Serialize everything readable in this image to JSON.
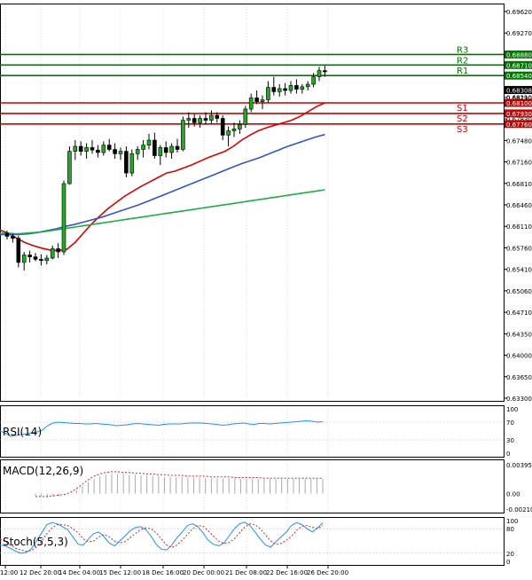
{
  "chart_data": [
    {
      "panel": "price",
      "type": "candlestick",
      "ylim": [
        0.633,
        0.697
      ],
      "y_ticks": [
        "0.69620",
        "0.69270",
        "0.68880",
        "0.68540",
        "0.68190",
        "0.67830",
        "0.67480",
        "0.67160",
        "0.66810",
        "0.66460",
        "0.66110",
        "0.65760",
        "0.65410",
        "0.65060",
        "0.64710",
        "0.64350",
        "0.64000",
        "0.63650",
        "0.63300"
      ],
      "x_labels": [
        "12:00",
        "12 Dec 20:00",
        "14 Dec 04:00",
        "15 Dec 12:00",
        "18 Dec 16:00",
        "20 Dec 00:00",
        "21 Dec 08:00",
        "22 Dec 16:00",
        "26 Dec 20:00"
      ],
      "candles": [
        [
          0.66,
          0.6604,
          0.659,
          0.6595
        ],
        [
          0.6595,
          0.6599,
          0.6585,
          0.6592
        ],
        [
          0.6592,
          0.6596,
          0.6545,
          0.6553
        ],
        [
          0.6553,
          0.657,
          0.654,
          0.6565
        ],
        [
          0.6565,
          0.6572,
          0.6553,
          0.6562
        ],
        [
          0.6562,
          0.6568,
          0.6555,
          0.6558
        ],
        [
          0.6558,
          0.6566,
          0.6548,
          0.6556
        ],
        [
          0.6556,
          0.6565,
          0.655,
          0.656
        ],
        [
          0.656,
          0.658,
          0.6558,
          0.6575
        ],
        [
          0.6575,
          0.6584,
          0.656,
          0.657
        ],
        [
          0.657,
          0.6685,
          0.6565,
          0.668
        ],
        [
          0.668,
          0.674,
          0.6678,
          0.6732
        ],
        [
          0.6732,
          0.675,
          0.6718,
          0.674
        ],
        [
          0.674,
          0.6748,
          0.6725,
          0.6732
        ],
        [
          0.6732,
          0.6745,
          0.672,
          0.6738
        ],
        [
          0.6738,
          0.675,
          0.6728,
          0.6734
        ],
        [
          0.6734,
          0.6742,
          0.6722,
          0.673
        ],
        [
          0.673,
          0.6748,
          0.6725,
          0.6742
        ],
        [
          0.6742,
          0.6752,
          0.6732,
          0.6735
        ],
        [
          0.6735,
          0.6745,
          0.672,
          0.6728
        ],
        [
          0.6728,
          0.6738,
          0.6718,
          0.6732
        ],
        [
          0.6732,
          0.674,
          0.669,
          0.6697
        ],
        [
          0.6697,
          0.6735,
          0.6692,
          0.6728
        ],
        [
          0.6728,
          0.674,
          0.6718,
          0.6735
        ],
        [
          0.6735,
          0.675,
          0.6722,
          0.6742
        ],
        [
          0.6742,
          0.676,
          0.6735,
          0.675
        ],
        [
          0.675,
          0.6762,
          0.672,
          0.6725
        ],
        [
          0.6725,
          0.6742,
          0.671,
          0.6738
        ],
        [
          0.6738,
          0.6748,
          0.6722,
          0.673
        ],
        [
          0.673,
          0.6745,
          0.672,
          0.674
        ],
        [
          0.674,
          0.6752,
          0.673,
          0.6735
        ],
        [
          0.6735,
          0.6788,
          0.6732,
          0.6782
        ],
        [
          0.6782,
          0.6795,
          0.677,
          0.6785
        ],
        [
          0.6785,
          0.6792,
          0.6772,
          0.6778
        ],
        [
          0.6778,
          0.679,
          0.677,
          0.6785
        ],
        [
          0.6785,
          0.6795,
          0.6775,
          0.6782
        ],
        [
          0.6782,
          0.6798,
          0.6775,
          0.679
        ],
        [
          0.679,
          0.6795,
          0.6778,
          0.6785
        ],
        [
          0.6785,
          0.679,
          0.675,
          0.6758
        ],
        [
          0.6758,
          0.6772,
          0.674,
          0.6765
        ],
        [
          0.6765,
          0.6778,
          0.6755,
          0.6768
        ],
        [
          0.6768,
          0.6782,
          0.676,
          0.6775
        ],
        [
          0.6775,
          0.6805,
          0.677,
          0.68
        ],
        [
          0.68,
          0.6825,
          0.6795,
          0.6818
        ],
        [
          0.6818,
          0.683,
          0.6808,
          0.6812
        ],
        [
          0.6812,
          0.6822,
          0.68,
          0.6815
        ],
        [
          0.6815,
          0.6845,
          0.681,
          0.6835
        ],
        [
          0.6835,
          0.6852,
          0.6822,
          0.6828
        ],
        [
          0.6828,
          0.684,
          0.682,
          0.6833
        ],
        [
          0.6833,
          0.6842,
          0.6822,
          0.683
        ],
        [
          0.683,
          0.6845,
          0.6825,
          0.6838
        ],
        [
          0.6838,
          0.6848,
          0.6825,
          0.6832
        ],
        [
          0.6832,
          0.684,
          0.6825,
          0.6836
        ],
        [
          0.6836,
          0.6845,
          0.683,
          0.684
        ],
        [
          0.684,
          0.6858,
          0.6835,
          0.6852
        ],
        [
          0.6852,
          0.6868,
          0.6845,
          0.6862
        ],
        [
          0.6862,
          0.687,
          0.6852,
          0.686
        ]
      ],
      "series": [
        {
          "color": "#dd0000",
          "values": [
            0.6605,
            0.66,
            0.6592,
            0.6585,
            0.658,
            0.6576,
            0.6573,
            0.6572,
            0.6574,
            0.6585,
            0.66,
            0.6615,
            0.6628,
            0.664,
            0.665,
            0.666,
            0.6668,
            0.6676,
            0.6683,
            0.669,
            0.6697,
            0.67,
            0.6705,
            0.671,
            0.6716,
            0.6722,
            0.6727,
            0.6732,
            0.674,
            0.675,
            0.6758,
            0.6765,
            0.677,
            0.6774,
            0.6778,
            0.6782,
            0.6788,
            0.6796,
            0.6804,
            0.681
          ]
        },
        {
          "color": "#3355cc",
          "values": [
            0.6598,
            0.6598,
            0.6598,
            0.6599,
            0.6601,
            0.6604,
            0.6607,
            0.6611,
            0.6614,
            0.6618,
            0.6622,
            0.6626,
            0.6631,
            0.6636,
            0.6641,
            0.6646,
            0.6652,
            0.6658,
            0.6664,
            0.667,
            0.6676,
            0.6682,
            0.6688,
            0.6694,
            0.67,
            0.6706,
            0.6712,
            0.6717,
            0.6722,
            0.6728,
            0.6734,
            0.674,
            0.6745,
            0.675,
            0.6755,
            0.6759
          ]
        },
        {
          "color": "#22aa44",
          "values": [
            0.66,
            0.66,
            0.6599,
            0.66,
            0.6601,
            0.6602,
            0.6604,
            0.6606,
            0.6608,
            0.661,
            0.6612,
            0.6614,
            0.6616,
            0.6618,
            0.662,
            0.6622,
            0.6624,
            0.6626,
            0.6628,
            0.663,
            0.6632,
            0.6634,
            0.6636,
            0.6638,
            0.664,
            0.6642,
            0.6644,
            0.6646,
            0.6648,
            0.665,
            0.6652,
            0.6654,
            0.6656,
            0.6658,
            0.666,
            0.6662,
            0.6664,
            0.6666,
            0.6668,
            0.667
          ]
        }
      ],
      "levels": [
        {
          "name": "R3",
          "value": 0.6888,
          "label": "0.68880",
          "color": "#007700"
        },
        {
          "name": "R2",
          "value": 0.6871,
          "label": "0.68710",
          "color": "#007700"
        },
        {
          "name": "R1",
          "value": 0.6854,
          "label": "0.68540",
          "color": "#007700"
        },
        {
          "name": "S1",
          "value": 0.681,
          "label": "0.68100",
          "color": "#cc0000"
        },
        {
          "name": "S2",
          "value": 0.6793,
          "label": "0.67930",
          "color": "#cc0000"
        },
        {
          "name": "S3",
          "value": 0.6776,
          "label": "0.67760",
          "color": "#cc0000"
        }
      ],
      "current_price": {
        "value": 0.68308,
        "label": "0.68308"
      },
      "extra_label": "0.68210"
    },
    {
      "panel": "rsi",
      "type": "line",
      "title": "RSI(14)",
      "ylim": [
        0,
        100
      ],
      "y_ticks": [
        "100",
        "70",
        "30",
        "0"
      ],
      "series": [
        {
          "color": "#1e90ff",
          "values": [
            50,
            45,
            38,
            40,
            42,
            44,
            46,
            48,
            52,
            62,
            68,
            70,
            69,
            68,
            67,
            67,
            66,
            66,
            67,
            66,
            65,
            64,
            62,
            63,
            64,
            66,
            67,
            66,
            65,
            64,
            63,
            65,
            66,
            66,
            66,
            67,
            68,
            68,
            68,
            67,
            66,
            65,
            63,
            64,
            66,
            67,
            68,
            66,
            65,
            67,
            67,
            66,
            67,
            68,
            69,
            70,
            71,
            72,
            73,
            72,
            70,
            71
          ]
        }
      ]
    },
    {
      "panel": "macd",
      "type": "bar",
      "title": "MACD(12,26,9)",
      "ylim": [
        -0.002104,
        0.003958
      ],
      "y_ticks": [
        "0.003958",
        "0.00",
        "-0.002104"
      ],
      "values": [
        -0.0003,
        -0.0004,
        -0.0005,
        -0.0004,
        -0.0003,
        -0.0002,
        0.0,
        0.0005,
        0.0011,
        0.0016,
        0.002,
        0.0024,
        0.0026,
        0.0027,
        0.0027,
        0.0027,
        0.0026,
        0.0026,
        0.0025,
        0.0025,
        0.0024,
        0.0024,
        0.0023,
        0.0023,
        0.0023,
        0.0023,
        0.0022,
        0.0022,
        0.0022,
        0.0022,
        0.0021,
        0.0021,
        0.0021,
        0.0021,
        0.0021,
        0.002,
        0.002,
        0.002,
        0.002,
        0.002,
        0.002,
        0.002,
        0.002,
        0.002,
        0.002,
        0.002,
        0.002,
        0.002,
        0.002,
        0.002
      ],
      "series": [
        {
          "color": "#dd2222",
          "values": [
            -0.0004,
            -0.0004,
            -0.0004,
            -0.0003,
            -0.0002,
            -0.0001,
            0.0002,
            0.0007,
            0.0013,
            0.0019,
            0.0024,
            0.0027,
            0.0029,
            0.003,
            0.003,
            0.0029,
            0.0029,
            0.0028,
            0.0028,
            0.0027,
            0.0027,
            0.0026,
            0.0026,
            0.0025,
            0.0025,
            0.0025,
            0.0024,
            0.0024,
            0.0024,
            0.0024,
            0.0023,
            0.0023,
            0.0023,
            0.0023,
            0.0022,
            0.0022,
            0.0022,
            0.0022,
            0.0022,
            0.0021,
            0.0021,
            0.0021,
            0.0021,
            0.0021,
            0.0021,
            0.0021,
            0.0021,
            0.0021,
            0.0021,
            0.0021
          ]
        }
      ]
    },
    {
      "panel": "stoch",
      "type": "line",
      "title": "Stoch(5,5,3)",
      "ylim": [
        0,
        100
      ],
      "y_ticks": [
        "100",
        "80",
        "20",
        "0"
      ],
      "series": [
        {
          "color": "#1e90ff",
          "values": [
            40,
            38,
            32,
            25,
            20,
            22,
            30,
            50,
            70,
            90,
            95,
            92,
            85,
            78,
            60,
            42,
            40,
            55,
            68,
            72,
            60,
            45,
            38,
            50,
            62,
            75,
            83,
            85,
            78,
            62,
            42,
            30,
            28,
            40,
            58,
            72,
            88,
            92,
            85,
            70,
            52,
            42,
            38,
            45,
            62,
            80,
            92,
            96,
            88,
            72,
            55,
            40,
            35,
            48,
            60,
            72,
            88,
            95,
            90,
            80,
            72,
            82,
            95
          ]
        },
        {
          "color": "#dd2222",
          "values": [
            55,
            48,
            40,
            32,
            28,
            25,
            26,
            35,
            50,
            68,
            82,
            90,
            90,
            88,
            80,
            70,
            55,
            48,
            50,
            60,
            66,
            60,
            50,
            45,
            48,
            58,
            68,
            78,
            82,
            80,
            70,
            55,
            40,
            34,
            40,
            52,
            66,
            80,
            88,
            86,
            75,
            62,
            50,
            44,
            46,
            55,
            70,
            84,
            92,
            90,
            80,
            65,
            50,
            42,
            44,
            52,
            62,
            76,
            86,
            88,
            84,
            80,
            88
          ]
        }
      ]
    }
  ]
}
